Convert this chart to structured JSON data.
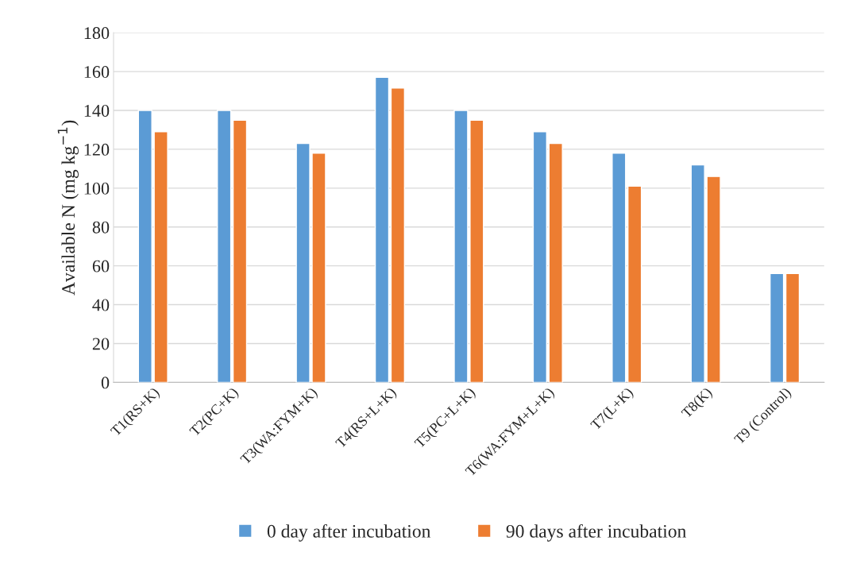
{
  "chart_data": {
    "type": "bar",
    "ylabel": "Available N (mg kg$^{−1}$)",
    "categories": [
      "T1(RS+K)",
      "T2(PC+K)",
      "T3(WA:FYM+K)",
      "T4(RS+L+K)",
      "T5(PC+L+K)",
      "T6(WA:FYM+L+K)",
      "T7(L+K)",
      "T8(K)",
      "T9 (Control)"
    ],
    "series": [
      {
        "name": "0 day after incubation",
        "color": "#5b9bd5",
        "values": [
          140,
          140,
          123,
          157,
          140,
          129,
          118,
          112,
          56
        ]
      },
      {
        "name": "90 days after incubation",
        "color": "#ed7d31",
        "values": [
          129,
          135,
          118,
          151.5,
          135,
          123,
          101,
          106,
          56
        ]
      }
    ],
    "ylim": [
      0,
      180
    ],
    "yticks": [
      0,
      20,
      40,
      60,
      80,
      100,
      120,
      140,
      160,
      180
    ],
    "grid": "y",
    "legend": "bottom"
  }
}
